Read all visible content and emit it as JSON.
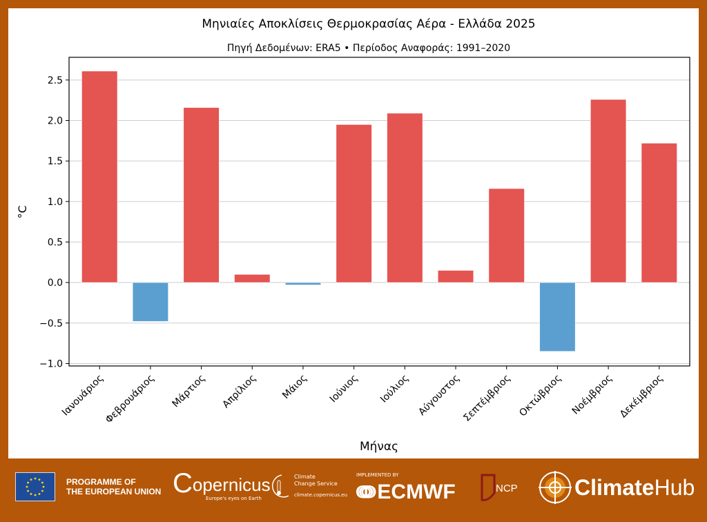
{
  "chart_data": {
    "type": "bar",
    "title": "Μηνιαίες Αποκλίσεις Θερμοκρασίας Αέρα - Ελλάδα 2025",
    "subtitle": "Πηγή Δεδομένων: ERA5 • Περίοδος Αναφοράς: 1991–2020",
    "xlabel": "Μήνας",
    "ylabel": "°C",
    "categories": [
      "Ιανουάριος",
      "Φεβρουάριος",
      "Μάρτιος",
      "Απρίλιος",
      "Μάιος",
      "Ιούνιος",
      "Ιούλιος",
      "Αύγουστος",
      "Σεπτέμβριος",
      "Οκτώβριος",
      "Νοέμβριος",
      "Δεκέμβριος"
    ],
    "values": [
      2.61,
      -0.48,
      2.16,
      0.1,
      -0.03,
      1.95,
      2.09,
      0.15,
      1.16,
      -0.85,
      2.26,
      1.72
    ],
    "ylim": [
      -1.03,
      2.78
    ],
    "yticks": [
      "−1.0",
      "−0.5",
      "0.0",
      "0.5",
      "1.0",
      "1.5",
      "2.0",
      "2.5"
    ],
    "ytick_values": [
      -1.0,
      -0.5,
      0.0,
      0.5,
      1.0,
      1.5,
      2.0,
      2.5
    ],
    "grid": "horizontal",
    "colors": {
      "positive": "#e45451",
      "negative": "#5b9fd0"
    }
  },
  "footer": {
    "eu": "PROGRAMME OF\nTHE EUROPEAN UNION",
    "eu_line1": "PROGRAMME OF",
    "eu_line2": "THE EUROPEAN UNION",
    "copernicus": "opernicus",
    "copernicus_tagline": "Europe's eyes on Earth",
    "c3s_line1": "Climate",
    "c3s_line2": "Change Service",
    "c3s_url": "climate.copernicus.eu",
    "ecmwf_pre": "IMPLEMENTED BY",
    "ecmwf": "ECMWF",
    "ncp": "NCP",
    "climatehub_bold": "Climate",
    "climatehub_light": "Hub",
    "background_color": "#b45708"
  }
}
